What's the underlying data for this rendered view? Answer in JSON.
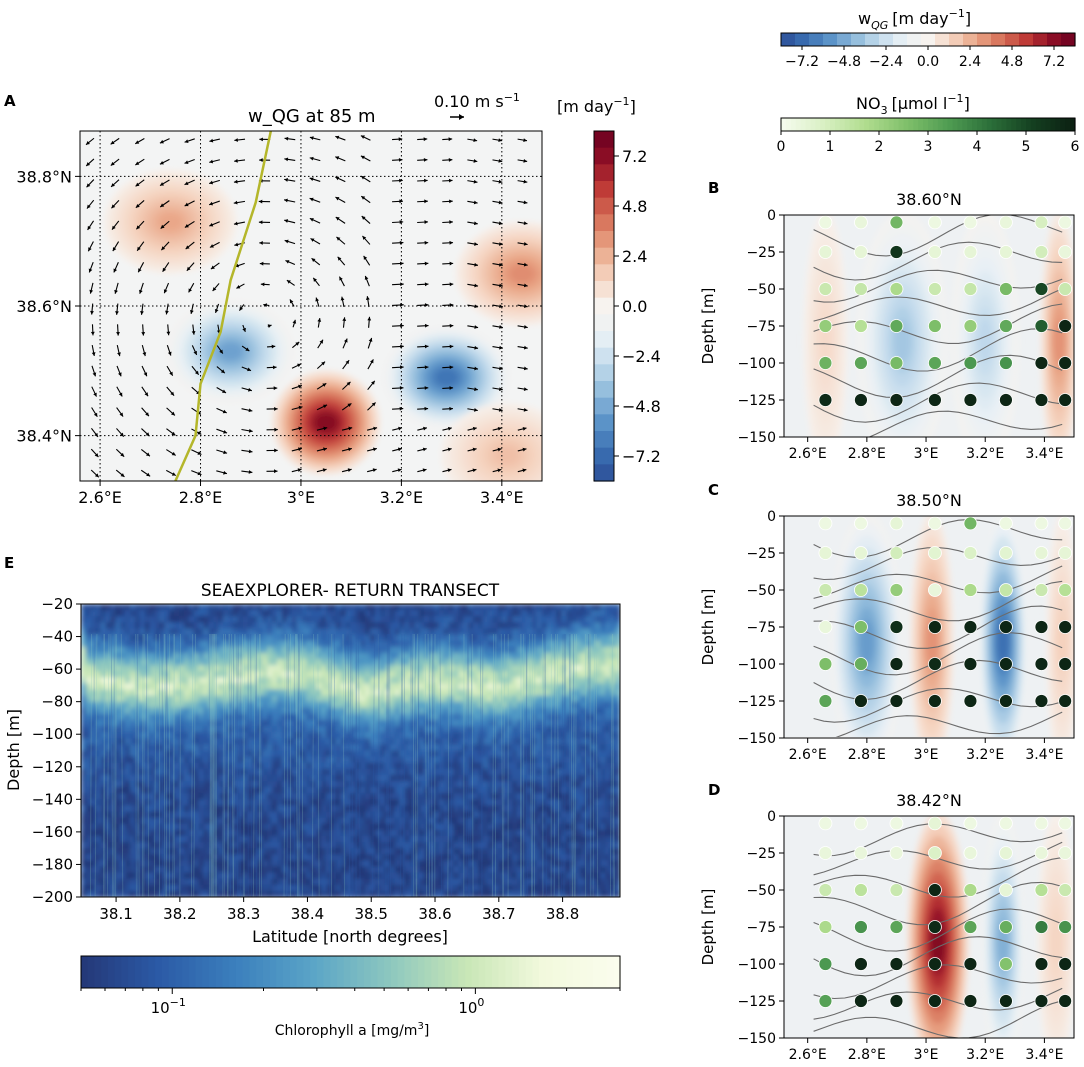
{
  "colors": {
    "rdbu": [
      "#2c4d96",
      "#3a6fb2",
      "#5b93c8",
      "#8fbadb",
      "#c3dbec",
      "#eaf1f5",
      "#f7f3ef",
      "#f5d3bf",
      "#e9a586",
      "#d67158",
      "#bf3b37",
      "#8f0f26",
      "#6b0020"
    ],
    "greens": [
      "#f7fcf0",
      "#d9f0c4",
      "#b1dd8f",
      "#7fbf6a",
      "#4f9c52",
      "#2b6e39",
      "#143f20",
      "#0b1f12"
    ],
    "ygb": [
      "#243777",
      "#2b5aa6",
      "#3b7fbd",
      "#5aa4c7",
      "#8cc7bf",
      "#c8e6b6",
      "#f2f9dd",
      "#fbfdee"
    ],
    "track": "#b4b62a"
  },
  "panel_labels": [
    "A",
    "B",
    "C",
    "D",
    "E"
  ],
  "chart_data": [
    {
      "id": "A",
      "type": "heatmap",
      "title": "w_QG at 85 m",
      "quiver_key": "0.10 m s",
      "lon_ticks": [
        "2.6°E",
        "2.8°E",
        "3°E",
        "3.2°E",
        "3.4°E"
      ],
      "lon_values": [
        2.6,
        2.8,
        3.0,
        3.2,
        3.4
      ],
      "lat_ticks": [
        "38.8°N",
        "38.6°N",
        "38.4°N"
      ],
      "lat_values": [
        38.8,
        38.6,
        38.4
      ],
      "xlim": [
        2.56,
        3.48
      ],
      "ylim": [
        38.33,
        38.87
      ],
      "value_range": [
        -8.4,
        8.4
      ],
      "features": [
        {
          "lon": 2.86,
          "lat": 38.53,
          "value": -5.6
        },
        {
          "lon": 3.29,
          "lat": 38.49,
          "value": -7.4
        },
        {
          "lon": 3.05,
          "lat": 38.42,
          "value": 8.1
        },
        {
          "lon": 2.74,
          "lat": 38.73,
          "value": 3.0
        },
        {
          "lon": 3.44,
          "lat": 38.65,
          "value": 3.8
        },
        {
          "lon": 3.41,
          "lat": 38.37,
          "value": 2.2
        }
      ],
      "track": [
        [
          2.94,
          38.87
        ],
        [
          2.91,
          38.76
        ],
        [
          2.86,
          38.64
        ],
        [
          2.84,
          38.56
        ],
        [
          2.8,
          38.48
        ],
        [
          2.79,
          38.4
        ],
        [
          2.75,
          38.33
        ]
      ]
    },
    {
      "id": "colorbar-wqg-a",
      "type": "colorbar",
      "label": "[m day",
      "ticks": [
        "7.2",
        "4.8",
        "2.4",
        "0.0",
        "−2.4",
        "−4.8",
        "−7.2"
      ],
      "tick_values": [
        7.2,
        4.8,
        2.4,
        0.0,
        -2.4,
        -4.8,
        -7.2
      ]
    },
    {
      "id": "colorbar-wqg-top",
      "type": "colorbar",
      "label": "w",
      "label_sub": "QG",
      "label_unit": "[m day",
      "ticks": [
        "−7.2",
        "−4.8",
        "−2.4",
        "0.0",
        "2.4",
        "4.8",
        "7.2"
      ],
      "tick_values": [
        -7.2,
        -4.8,
        -2.4,
        0.0,
        2.4,
        4.8,
        7.2
      ]
    },
    {
      "id": "colorbar-no3",
      "type": "colorbar",
      "label": "NO",
      "label_unit": "[μmol l",
      "ticks": [
        "0",
        "1",
        "2",
        "3",
        "4",
        "5",
        "6"
      ],
      "tick_values": [
        0,
        1,
        2,
        3,
        4,
        5,
        6
      ]
    },
    {
      "id": "B",
      "type": "heatmap",
      "title": "38.60°N",
      "ylabel": "Depth [m]",
      "x_ticks": [
        "2.6°E",
        "2.8°E",
        "3°E",
        "3.2°E",
        "3.4°E"
      ],
      "x_values": [
        2.6,
        2.8,
        3.0,
        3.2,
        3.4
      ],
      "y_ticks": [
        "0",
        "−25",
        "−50",
        "−75",
        "−100",
        "−125",
        "−150"
      ],
      "y_values": [
        0,
        -25,
        -50,
        -75,
        -100,
        -125,
        -150
      ],
      "xlim": [
        2.52,
        3.5
      ],
      "ylim": [
        -150,
        0
      ],
      "columns": [
        {
          "lon": 2.66,
          "value": 1.2,
          "width": 0.06
        },
        {
          "lon": 2.92,
          "value": -4.0,
          "width": 0.14
        },
        {
          "lon": 3.2,
          "value": -3.2,
          "width": 0.1
        },
        {
          "lon": 3.45,
          "value": 3.6,
          "width": 0.05
        }
      ],
      "nitrate_lon": [
        2.66,
        2.78,
        2.9,
        3.03,
        3.15,
        3.27,
        3.39,
        3.47
      ],
      "nitrate_depth": [
        -5,
        -25,
        -50,
        -75,
        -100,
        -125
      ],
      "nitrate": [
        [
          0.3,
          0.4,
          2.8,
          0.3,
          0.3,
          0.4,
          0.9,
          0.3
        ],
        [
          0.5,
          0.5,
          5.4,
          0.5,
          0.5,
          0.5,
          1.0,
          0.4
        ],
        [
          1.2,
          1.3,
          1.8,
          1.2,
          1.3,
          2.7,
          5.0,
          1.2
        ],
        [
          2.2,
          1.6,
          3.1,
          2.6,
          2.2,
          3.1,
          4.6,
          5.8
        ],
        [
          2.9,
          3.2,
          2.7,
          3.2,
          3.5,
          3.6,
          5.8,
          5.8
        ],
        [
          5.7,
          5.8,
          5.8,
          5.8,
          5.8,
          5.8,
          5.8,
          5.8
        ]
      ]
    },
    {
      "id": "C",
      "type": "heatmap",
      "title": "38.50°N",
      "ylabel": "Depth [m]",
      "x_ticks": [
        "2.6°E",
        "2.8°E",
        "3°E",
        "3.2°E",
        "3.4°E"
      ],
      "x_values": [
        2.6,
        2.8,
        3.0,
        3.2,
        3.4
      ],
      "y_ticks": [
        "0",
        "−25",
        "−50",
        "−75",
        "−100",
        "−125",
        "−150"
      ],
      "y_values": [
        0,
        -25,
        -50,
        -75,
        -100,
        -125,
        -150
      ],
      "xlim": [
        2.52,
        3.5
      ],
      "ylim": [
        -150,
        0
      ],
      "columns": [
        {
          "lon": 2.8,
          "value": -5.8,
          "width": 0.11
        },
        {
          "lon": 3.02,
          "value": 3.6,
          "width": 0.06
        },
        {
          "lon": 3.26,
          "value": -7.6,
          "width": 0.07
        },
        {
          "lon": 3.46,
          "value": 1.6,
          "width": 0.04
        }
      ],
      "nitrate_lon": [
        2.66,
        2.78,
        2.9,
        3.03,
        3.15,
        3.27,
        3.39,
        3.47
      ],
      "nitrate_depth": [
        -5,
        -25,
        -50,
        -75,
        -100,
        -125
      ],
      "nitrate": [
        [
          0.3,
          0.3,
          0.5,
          0.3,
          2.8,
          0.3,
          0.3,
          0.3
        ],
        [
          0.5,
          0.5,
          1.0,
          0.6,
          0.8,
          0.6,
          0.5,
          0.5
        ],
        [
          1.2,
          1.5,
          2.2,
          0.4,
          1.8,
          1.3,
          1.2,
          1.6
        ],
        [
          0.4,
          2.6,
          5.6,
          5.8,
          5.8,
          5.8,
          5.8,
          5.8
        ],
        [
          2.6,
          3.0,
          5.8,
          5.7,
          5.8,
          5.8,
          5.8,
          5.8
        ],
        [
          3.2,
          5.8,
          5.8,
          5.8,
          5.8,
          5.8,
          5.8,
          5.8
        ]
      ]
    },
    {
      "id": "D",
      "type": "heatmap",
      "title": "38.42°N",
      "ylabel": "Depth [m]",
      "x_ticks": [
        "2.6°E",
        "2.8°E",
        "3°E",
        "3.2°E",
        "3.4°E"
      ],
      "x_values": [
        2.6,
        2.8,
        3.0,
        3.2,
        3.4
      ],
      "y_ticks": [
        "0",
        "−25",
        "−50",
        "−75",
        "−100",
        "−125",
        "−150"
      ],
      "y_values": [
        0,
        -25,
        -50,
        -75,
        -100,
        -125,
        -150
      ],
      "xlim": [
        2.52,
        3.5
      ],
      "ylim": [
        -150,
        0
      ],
      "columns": [
        {
          "lon": 3.04,
          "value": 8.2,
          "width": 0.09
        },
        {
          "lon": 3.26,
          "value": -5.0,
          "width": 0.06
        },
        {
          "lon": 3.44,
          "value": 1.4,
          "width": 0.05
        }
      ],
      "nitrate_lon": [
        2.66,
        2.78,
        2.9,
        3.03,
        3.15,
        3.27,
        3.39,
        3.47
      ],
      "nitrate_depth": [
        -5,
        -25,
        -50,
        -75,
        -100,
        -125
      ],
      "nitrate": [
        [
          0.3,
          0.3,
          0.3,
          0.5,
          0.3,
          0.3,
          0.3,
          0.3
        ],
        [
          0.4,
          0.4,
          0.4,
          0.8,
          0.4,
          0.5,
          0.4,
          0.4
        ],
        [
          1.2,
          1.5,
          1.2,
          5.8,
          1.8,
          0.5,
          1.6,
          1.2
        ],
        [
          1.8,
          3.6,
          3.2,
          5.7,
          3.2,
          3.0,
          4.0,
          3.6
        ],
        [
          3.5,
          5.8,
          5.8,
          5.8,
          5.8,
          2.5,
          5.8,
          5.8
        ],
        [
          3.3,
          5.8,
          5.8,
          5.8,
          5.8,
          5.8,
          5.8,
          5.8
        ]
      ]
    },
    {
      "id": "E",
      "type": "heatmap",
      "title": "SEAEXPLORER- RETURN TRANSECT",
      "xlabel": "Latitude [north degrees]",
      "ylabel": "Depth [m]",
      "x_ticks": [
        "38.1",
        "38.2",
        "38.3",
        "38.4",
        "38.5",
        "38.6",
        "38.7",
        "38.8"
      ],
      "x_values": [
        38.1,
        38.2,
        38.3,
        38.4,
        38.5,
        38.6,
        38.7,
        38.8
      ],
      "y_ticks": [
        "−20",
        "−40",
        "−60",
        "−80",
        "−100",
        "−120",
        "−140",
        "−160",
        "−180",
        "−200"
      ],
      "y_values": [
        -20,
        -40,
        -60,
        -80,
        -100,
        -120,
        -140,
        -160,
        -180,
        -200
      ],
      "xlim": [
        38.045,
        38.89
      ],
      "ylim": [
        -200,
        -20
      ],
      "dcm_depth": [
        [
          38.05,
          -64
        ],
        [
          38.15,
          -70
        ],
        [
          38.25,
          -66
        ],
        [
          38.33,
          -60
        ],
        [
          38.4,
          -62
        ],
        [
          38.45,
          -68
        ],
        [
          38.5,
          -74
        ],
        [
          38.55,
          -68
        ],
        [
          38.62,
          -66
        ],
        [
          38.7,
          -70
        ],
        [
          38.78,
          -62
        ],
        [
          38.85,
          -56
        ],
        [
          38.89,
          -56
        ]
      ],
      "colorbar": {
        "label": "Chlorophyll a [mg/m",
        "label_sup": "3",
        "scale": "log",
        "range": [
          0.05,
          3.0
        ],
        "major_ticks": [
          "10",
          "10"
        ],
        "major_exps": [
          "−1",
          "0"
        ],
        "major_values": [
          0.1,
          1.0
        ]
      }
    }
  ]
}
